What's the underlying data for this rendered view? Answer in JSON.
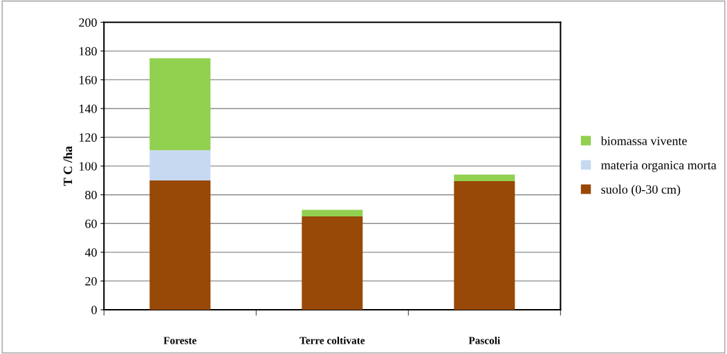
{
  "chart_data": {
    "type": "bar",
    "stacked": true,
    "ylabel": "T C /ha",
    "categories": [
      "Foreste",
      "Terre coltivate",
      "Pascoli"
    ],
    "series": [
      {
        "name": "suolo (0-30 cm)",
        "color": "#984807",
        "values": [
          90,
          65,
          89.5
        ]
      },
      {
        "name": "materia organica morta",
        "color": "#c6d9f1",
        "values": [
          21,
          0,
          0
        ]
      },
      {
        "name": "biomassa vivente",
        "color": "#92d050",
        "values": [
          64,
          4.5,
          4.5
        ]
      }
    ],
    "ylim": [
      0,
      200
    ],
    "yticks": [
      0,
      20,
      40,
      60,
      80,
      100,
      120,
      140,
      160,
      180,
      200
    ],
    "grid": "y",
    "legend": "right"
  }
}
